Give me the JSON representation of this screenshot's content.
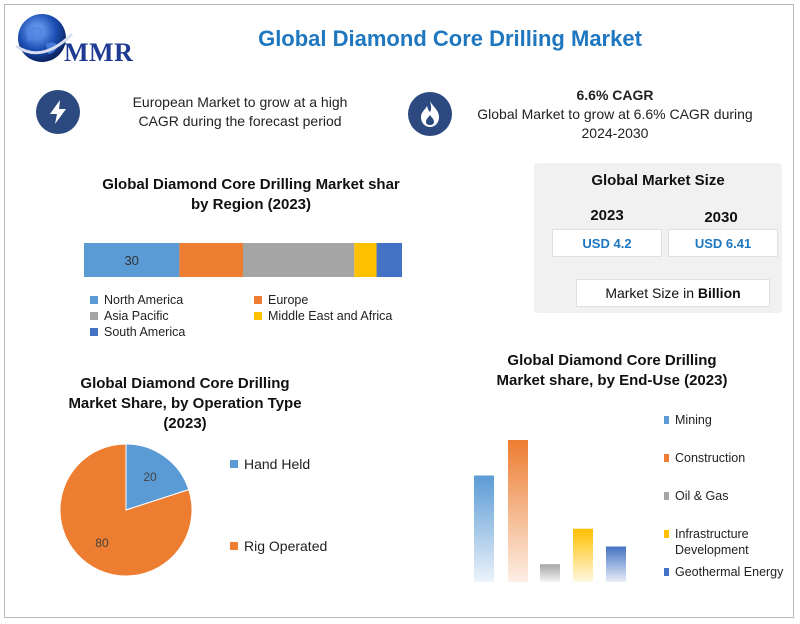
{
  "header": {
    "title": "Global Diamond Core Drilling Market",
    "logo_text": "MMR"
  },
  "info_left": {
    "icon": "lightning-icon",
    "line1": "European Market to grow at a high",
    "line2": "CAGR during the forecast period"
  },
  "info_right": {
    "icon": "flame-icon",
    "heading": "6.6% CAGR",
    "line1": "Global Market to grow at 6.6% CAGR during",
    "line2": "2024-2030"
  },
  "market_size": {
    "title": "Global Market Size",
    "year1": "2023",
    "year2": "2030",
    "value1": "USD 4.2",
    "value2": "USD 6.41",
    "note_prefix": "Market Size in ",
    "note_unit": "Billion"
  },
  "chart_data": [
    {
      "type": "bar",
      "orientation": "horizontal-stacked",
      "title_line1": "Global Diamond Core Drilling Market shar",
      "title_line2": "by Region (2023)",
      "series": [
        {
          "name": "North America",
          "value": 30,
          "color": "#5b9bd5"
        },
        {
          "name": "Europe",
          "value": 20,
          "color": "#ed7d31"
        },
        {
          "name": "Asia Pacific",
          "value": 35,
          "color": "#a5a5a5"
        },
        {
          "name": "Middle East and Africa",
          "value": 7,
          "color": "#ffc000"
        },
        {
          "name": "South America",
          "value": 8,
          "color": "#4472c4"
        }
      ],
      "data_labels": [
        "30"
      ]
    },
    {
      "type": "pie",
      "title_line1": "Global Diamond Core Drilling",
      "title_line2": "Market Share, by Operation Type",
      "title_line3": "(2023)",
      "slices": [
        {
          "name": "Hand Held",
          "value": 20,
          "color": "#5b9bd5"
        },
        {
          "name": "Rig Operated",
          "value": 80,
          "color": "#ed7d31"
        }
      ]
    },
    {
      "type": "bar",
      "title_line1": "Global Diamond Core Drilling",
      "title_line2": "Market share, by End-Use (2023)",
      "categories": [
        "Mining",
        "Construction",
        "Oil & Gas",
        "Infrastructure Development",
        "Geothermal Energy"
      ],
      "legend_lines": [
        [
          "Mining"
        ],
        [
          "Construction"
        ],
        [
          "Oil & Gas"
        ],
        [
          "Infrastructure",
          "Development"
        ],
        [
          "Geothermal Energy"
        ]
      ],
      "values": [
        30,
        40,
        5,
        15,
        10
      ],
      "colors": [
        "#5b9bd5",
        "#ed7d31",
        "#a5a5a5",
        "#ffc000",
        "#4472c4"
      ],
      "ylim": [
        0,
        40
      ]
    }
  ]
}
